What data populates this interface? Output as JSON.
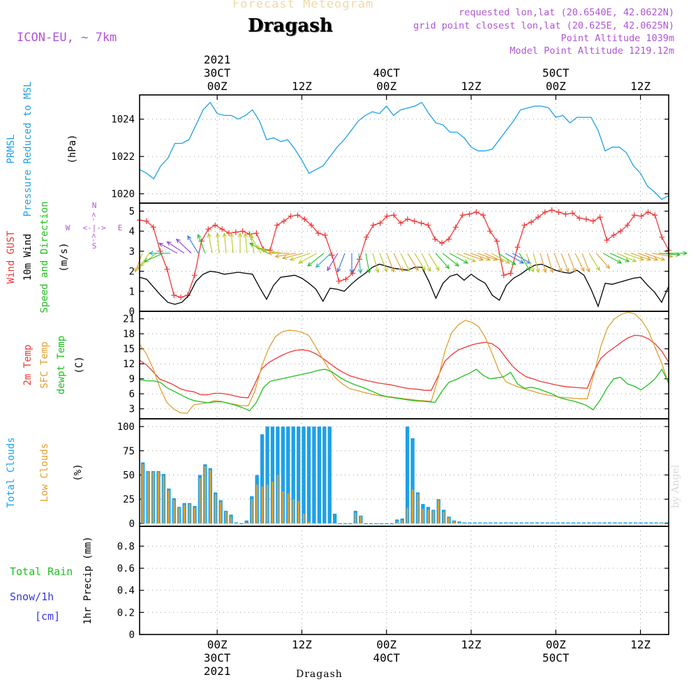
{
  "header": {
    "faded_title": "Forecast Meteogram",
    "title": "Dragash",
    "model": "ICON-EU, ~ 7km",
    "info_lines": [
      "requested lon,lat (20.6540E, 42.0622N)",
      "grid point closest lon,lat (20.625E, 42.0625N)",
      "Point Altitude 1039m",
      "Model Point Altitude 1219.12m"
    ],
    "watermark": "by Angel",
    "bottom_label": "Dragash"
  },
  "time_axis": {
    "unit": "hours since first plotted step",
    "range": [
      0,
      75
    ],
    "major_ticks": [
      {
        "t": 11,
        "top": [
          "2021",
          "30CT",
          "00Z"
        ],
        "bottom": [
          "00Z",
          "30CT",
          "2021"
        ]
      },
      {
        "t": 23,
        "top": [
          "12Z"
        ],
        "bottom": [
          "12Z"
        ]
      },
      {
        "t": 35,
        "top": [
          "40CT",
          "00Z"
        ],
        "bottom": [
          "00Z",
          "40CT"
        ]
      },
      {
        "t": 47,
        "top": [
          "12Z"
        ],
        "bottom": [
          "12Z"
        ]
      },
      {
        "t": 59,
        "top": [
          "50CT",
          "00Z"
        ],
        "bottom": [
          "00Z",
          "50CT"
        ]
      },
      {
        "t": 71,
        "top": [
          "12Z"
        ],
        "bottom": [
          "12Z"
        ]
      }
    ]
  },
  "colors": {
    "pressure": "#1ea0e8",
    "gust": "#ee3838",
    "wind": "#000000",
    "temp2m": "#ee3838",
    "sfc_temp": "#e0a030",
    "dewpoint": "#20c020",
    "total_clouds": "#1ea0e8",
    "low_clouds": "#e0a030",
    "rain": "#20c020",
    "snow": "#3838e0",
    "purple": "#b054d8"
  },
  "chart_data": [
    {
      "id": "pressure",
      "type": "line",
      "ylabel_lines": [
        {
          "text": "PRMSL",
          "color": "#1ea0e8"
        },
        {
          "text": "Pressure Reduced to MSL",
          "color": "#1ea0e8"
        },
        {
          "text": "(hPa)",
          "color": "#000000"
        }
      ],
      "ylim": [
        1019.5,
        1025.3
      ],
      "yticks": [
        1020,
        1022,
        1024
      ],
      "series": [
        {
          "key": "prmsl",
          "color": "#1ea0e8",
          "values": [
            1021.3,
            1021.1,
            1020.8,
            1021.5,
            1021.9,
            1022.7,
            1022.7,
            1022.9,
            1023.7,
            1024.5,
            1024.9,
            1024.3,
            1024.2,
            1024.2,
            1024.0,
            1024.2,
            1024.5,
            1023.9,
            1022.9,
            1023.0,
            1022.8,
            1022.9,
            1022.4,
            1021.8,
            1021.1,
            1021.3,
            1021.5,
            1022.0,
            1022.5,
            1022.9,
            1023.4,
            1023.9,
            1024.2,
            1024.4,
            1024.3,
            1024.7,
            1024.2,
            1024.5,
            1024.6,
            1024.7,
            1024.9,
            1024.3,
            1023.8,
            1023.7,
            1023.3,
            1023.3,
            1023.0,
            1022.5,
            1022.3,
            1022.3,
            1022.4,
            1022.9,
            1023.4,
            1023.9,
            1024.5,
            1024.6,
            1024.7,
            1024.7,
            1024.6,
            1024.1,
            1024.2,
            1023.8,
            1024.1,
            1024.1,
            1024.1,
            1023.4,
            1022.3,
            1022.5,
            1022.5,
            1022.2,
            1021.5,
            1021.1,
            1020.4,
            1020.1,
            1019.7,
            1019.9
          ]
        }
      ]
    },
    {
      "id": "wind",
      "type": "line",
      "ylabel_lines": [
        {
          "text": "Wind GUST",
          "color": "#ee3838"
        },
        {
          "text": "10m Wind",
          "color": "#000000"
        },
        {
          "text": "Speed and Direction",
          "color": "#20c020"
        },
        {
          "text": "(m/s)",
          "color": "#000000"
        }
      ],
      "ylim": [
        0,
        5.4
      ],
      "yticks": [
        0,
        1,
        2,
        3,
        4,
        5
      ],
      "compass": {
        "n": "N",
        "s": "S",
        "w": "W",
        "e": "E"
      },
      "series": [
        {
          "key": "gust",
          "color": "#ee3838",
          "marker": "+",
          "values": [
            4.55,
            4.5,
            4.2,
            3.0,
            2.1,
            0.8,
            0.7,
            0.8,
            1.8,
            3.5,
            4.1,
            4.3,
            4.1,
            3.9,
            3.95,
            4.0,
            3.85,
            3.9,
            3.1,
            3.05,
            4.3,
            4.5,
            4.75,
            4.8,
            4.6,
            4.3,
            3.9,
            3.8,
            2.8,
            1.5,
            1.6,
            1.9,
            2.6,
            3.7,
            4.3,
            4.4,
            4.75,
            4.8,
            4.4,
            4.6,
            4.5,
            4.4,
            4.3,
            3.6,
            3.4,
            3.6,
            4.2,
            4.8,
            4.85,
            4.95,
            4.8,
            4.0,
            3.5,
            1.8,
            1.9,
            3.2,
            4.3,
            4.45,
            4.7,
            4.95,
            5.05,
            4.95,
            4.85,
            4.9,
            4.65,
            4.6,
            4.5,
            4.7,
            3.55,
            3.8,
            4.0,
            4.3,
            4.8,
            4.75,
            4.95,
            4.8,
            3.7,
            3.05
          ]
        },
        {
          "key": "wind10m",
          "color": "#000000",
          "values": [
            1.7,
            1.6,
            1.2,
            0.8,
            0.45,
            0.35,
            0.45,
            0.8,
            1.5,
            1.85,
            2.0,
            1.95,
            1.85,
            1.9,
            1.95,
            1.9,
            1.85,
            1.2,
            0.6,
            1.3,
            1.7,
            1.75,
            1.8,
            1.65,
            1.4,
            1.1,
            0.5,
            1.15,
            1.1,
            1.0,
            1.35,
            1.65,
            1.9,
            2.2,
            2.35,
            2.25,
            2.15,
            2.1,
            2.05,
            2.2,
            2.2,
            1.5,
            0.65,
            1.4,
            1.75,
            1.85,
            1.55,
            1.85,
            1.6,
            1.4,
            0.8,
            0.55,
            1.3,
            1.65,
            1.85,
            2.1,
            2.3,
            2.35,
            2.2,
            2.05,
            1.95,
            1.9,
            2.05,
            1.8,
            1.1,
            0.25,
            1.4,
            1.35,
            1.45,
            1.55,
            1.65,
            1.7,
            1.3,
            0.95,
            0.45,
            1.25
          ]
        }
      ],
      "barbs": {
        "ref_speed": 2.9,
        "angles_deg": [
          200,
          215,
          230,
          245,
          270,
          300,
          305,
          315,
          330,
          340,
          350,
          355,
          355,
          355,
          0,
          355,
          350,
          330,
          300,
          290,
          280,
          270,
          260,
          255,
          250,
          240,
          230,
          225,
          210,
          200,
          180,
          175,
          170,
          165,
          160,
          160,
          155,
          155,
          150,
          150,
          155,
          150,
          140,
          130,
          120,
          115,
          110,
          110,
          110,
          115,
          120,
          125,
          120,
          120,
          150,
          160,
          165,
          165,
          165,
          160,
          160,
          160,
          155,
          160,
          150,
          140,
          120,
          115,
          115,
          110,
          110,
          110,
          110,
          100,
          95,
          90
        ]
      }
    },
    {
      "id": "temperature",
      "type": "line",
      "ylabel_lines": [
        {
          "text": "2m Temp",
          "color": "#ee3838"
        },
        {
          "text": "SFC Temp",
          "color": "#e0a030"
        },
        {
          "text": "dewpt Temp",
          "color": "#20c020"
        },
        {
          "text": "(C)",
          "color": "#000000"
        }
      ],
      "ylim": [
        1,
        22.5
      ],
      "yticks": [
        3,
        6,
        9,
        12,
        15,
        18,
        21
      ],
      "series": [
        {
          "key": "t2m",
          "color": "#ee3838",
          "values": [
            12.7,
            11.8,
            10.4,
            8.9,
            8.4,
            7.8,
            7.0,
            6.6,
            6.4,
            5.8,
            5.8,
            6.1,
            6.1,
            5.9,
            5.6,
            5.3,
            5.2,
            8.0,
            11.0,
            12.2,
            13.0,
            13.7,
            14.3,
            14.7,
            14.8,
            14.6,
            14.0,
            13.1,
            12.1,
            11.1,
            10.3,
            9.6,
            9.2,
            8.8,
            8.5,
            8.2,
            8.0,
            7.8,
            7.5,
            7.2,
            7.0,
            6.9,
            6.7,
            6.7,
            9.5,
            12.5,
            13.8,
            14.8,
            15.3,
            15.8,
            16.1,
            16.3,
            16.0,
            15.0,
            13.2,
            11.5,
            10.3,
            9.4,
            9.0,
            8.5,
            8.2,
            7.9,
            7.6,
            7.4,
            7.3,
            7.2,
            7.1,
            10.5,
            13.1,
            14.3,
            15.3,
            16.3,
            17.2,
            17.7,
            17.6,
            17.0,
            16.0,
            14.5,
            12.3
          ]
        },
        {
          "key": "sfc",
          "color": "#e0a030",
          "values": [
            15.9,
            14.0,
            11.0,
            7.2,
            4.3,
            3.0,
            2.2,
            2.1,
            3.8,
            4.0,
            4.2,
            4.6,
            4.5,
            4.1,
            3.9,
            3.6,
            3.6,
            6.5,
            11.5,
            15.0,
            17.4,
            18.4,
            18.7,
            18.6,
            18.3,
            17.6,
            15.3,
            13.0,
            10.8,
            9.0,
            7.9,
            7.0,
            6.7,
            6.3,
            6.0,
            5.7,
            5.5,
            5.4,
            5.2,
            5.0,
            4.9,
            4.7,
            4.6,
            4.5,
            9.0,
            14.5,
            18.2,
            19.8,
            20.7,
            20.3,
            19.4,
            17.2,
            14.0,
            10.5,
            8.4,
            7.8,
            7.3,
            6.9,
            6.5,
            6.1,
            5.8,
            5.6,
            5.3,
            5.2,
            5.1,
            5.0,
            5.0,
            10.0,
            15.5,
            19.2,
            21.0,
            21.9,
            22.3,
            22.0,
            20.7,
            18.6,
            15.3,
            12.0,
            8.0
          ]
        },
        {
          "key": "dewpt",
          "color": "#20c020",
          "values": [
            8.8,
            8.6,
            8.6,
            8.3,
            7.2,
            6.5,
            5.8,
            5.1,
            4.6,
            4.4,
            4.2,
            4.4,
            4.4,
            4.1,
            3.7,
            3.2,
            2.6,
            4.3,
            7.2,
            8.5,
            8.8,
            9.1,
            9.4,
            9.7,
            10.0,
            10.3,
            10.7,
            10.9,
            10.4,
            9.4,
            8.6,
            8.0,
            7.5,
            7.0,
            6.4,
            5.8,
            5.4,
            5.2,
            5.0,
            4.8,
            4.6,
            4.5,
            4.4,
            4.3,
            6.5,
            8.3,
            8.8,
            9.5,
            10.1,
            10.9,
            9.7,
            9.0,
            9.2,
            9.4,
            10.3,
            8.0,
            7.1,
            7.3,
            7.0,
            6.5,
            6.0,
            5.3,
            4.9,
            4.6,
            4.2,
            3.7,
            2.8,
            4.7,
            7.1,
            9.0,
            9.3,
            8.0,
            7.5,
            6.8,
            7.8,
            9.0,
            10.9,
            8.2
          ]
        }
      ]
    },
    {
      "id": "clouds",
      "type": "bar",
      "ylabel_lines": [
        {
          "text": "Total Clouds",
          "color": "#1ea0e8"
        },
        {
          "text": "Low Clouds",
          "color": "#e0a030"
        },
        {
          "text": "(%)",
          "color": "#000000"
        }
      ],
      "ylim": [
        -3,
        108
      ],
      "yticks": [
        0,
        25,
        50,
        75,
        100
      ],
      "series": [
        {
          "key": "total",
          "color": "#1ea0e8",
          "values": [
            63,
            54,
            54,
            54,
            51,
            36,
            26,
            17,
            21,
            21,
            18,
            50,
            61,
            57,
            32,
            24,
            13,
            9,
            1,
            0,
            3,
            28,
            50,
            92,
            100,
            100,
            100,
            100,
            100,
            100,
            100,
            100,
            100,
            100,
            100,
            100,
            100,
            10,
            0,
            0,
            0,
            13,
            8,
            0,
            0,
            0,
            0,
            0,
            0,
            4,
            5,
            100,
            88,
            32,
            20,
            17,
            14,
            25,
            14,
            7,
            3,
            2,
            1,
            1,
            1,
            1,
            1,
            1,
            1,
            1,
            1,
            1,
            1,
            1,
            1,
            1,
            1,
            1,
            1,
            1,
            1,
            1,
            1,
            1,
            1,
            1,
            1,
            1,
            1,
            1,
            1,
            1,
            1,
            1,
            1,
            1,
            1,
            1,
            1,
            1,
            1,
            1
          ]
        },
        {
          "key": "low",
          "color": "#e0a030",
          "values": [
            61,
            53,
            53,
            53,
            49,
            34,
            24,
            16,
            19,
            20,
            16,
            47,
            59,
            55,
            30,
            22,
            12,
            7,
            0,
            0,
            1,
            25,
            40,
            38,
            40,
            43,
            50,
            33,
            31,
            25,
            23,
            10,
            2,
            0,
            0,
            0,
            0,
            0,
            0,
            0,
            0,
            11,
            7,
            0,
            0,
            0,
            0,
            0,
            0,
            2,
            3,
            16,
            35,
            30,
            15,
            14,
            13,
            24,
            12,
            6,
            2,
            1,
            0,
            0,
            0,
            0,
            0,
            0,
            0,
            0,
            0,
            0,
            0,
            0,
            0,
            0,
            0,
            0,
            0,
            0,
            0,
            0,
            0,
            0,
            0,
            0,
            0,
            0,
            0,
            0,
            0,
            0,
            0,
            0,
            0,
            0,
            0,
            0,
            0,
            0,
            1,
            0
          ]
        }
      ]
    },
    {
      "id": "precip",
      "type": "line",
      "ylabel_lines": [
        {
          "text": "1hr Precip (mm)",
          "color": "#000000"
        }
      ],
      "legend_lines": [
        {
          "text": "Total  Rain",
          "color": "#20c020"
        },
        {
          "text": "Snow/1h",
          "color": "#3838e0"
        },
        {
          "text": "[cm]",
          "color": "#3838e0"
        }
      ],
      "ylim": [
        0,
        0.98
      ],
      "yticks": [
        0,
        0.2,
        0.4,
        0.6,
        0.8
      ],
      "ytick_labels": [
        "0",
        "0.2",
        "0.4",
        "0.6",
        "0.8"
      ],
      "series": [
        {
          "key": "rain",
          "color": "#20c020",
          "values": []
        },
        {
          "key": "snow",
          "color": "#3838e0",
          "values": []
        }
      ]
    }
  ]
}
